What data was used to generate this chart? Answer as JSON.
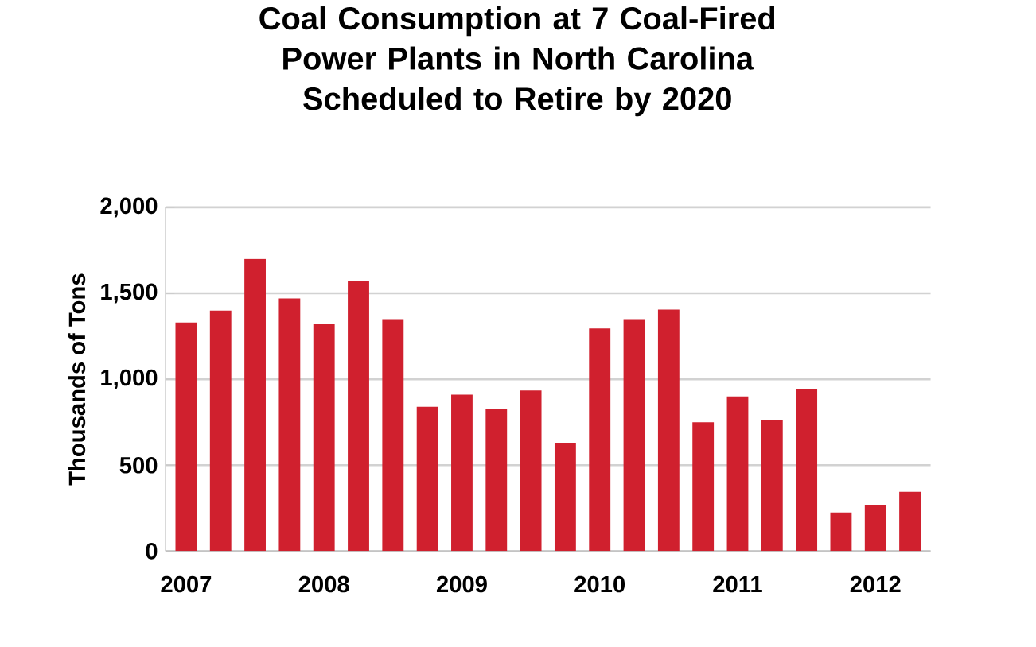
{
  "chart_data": {
    "type": "bar",
    "title": "Coal Consumption at 7 Coal-Fired Power Plants in North Carolina Scheduled to Retire by 2020",
    "ylabel": "Thousands of Tons",
    "categories": [
      "2007",
      null,
      null,
      null,
      "2008",
      null,
      null,
      null,
      "2009",
      null,
      null,
      null,
      "2010",
      null,
      null,
      null,
      "2011",
      null,
      null,
      null,
      "2012",
      null
    ],
    "values": [
      1330,
      1400,
      1700,
      1470,
      1320,
      1570,
      1350,
      840,
      910,
      830,
      935,
      630,
      1295,
      1350,
      1405,
      750,
      900,
      765,
      945,
      225,
      270,
      345
    ],
    "color": "#d0202e",
    "ylim": [
      0,
      2000
    ],
    "yticks": [
      0,
      500,
      {
        "value": 1000,
        "label": "1,000"
      },
      {
        "value": 1500,
        "label": "1,500"
      },
      {
        "value": 2000,
        "label": "2,000"
      }
    ],
    "grid": "y"
  }
}
